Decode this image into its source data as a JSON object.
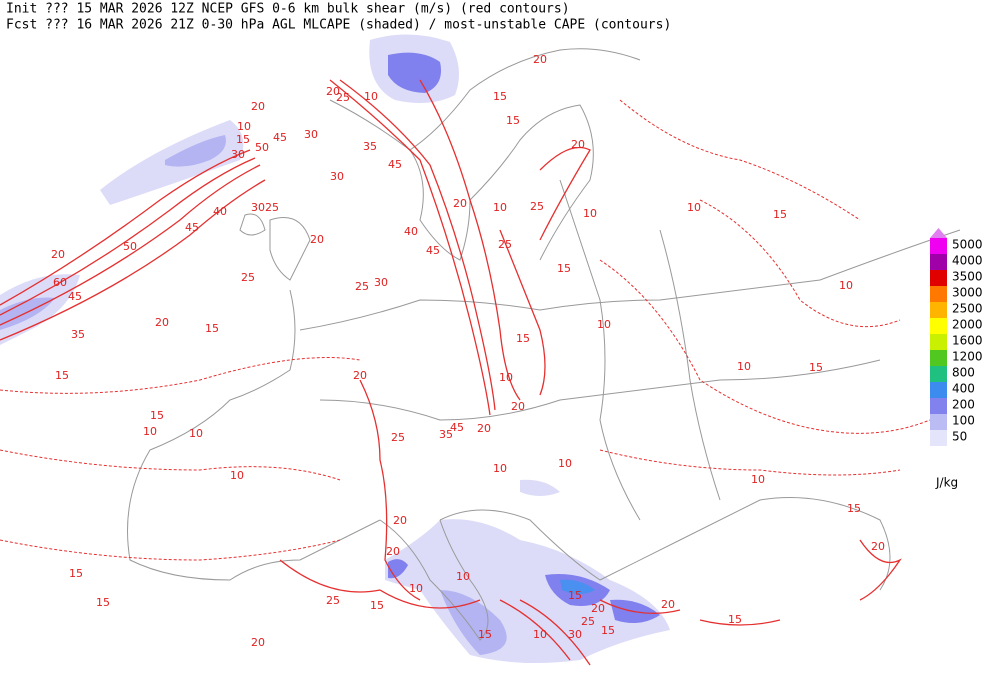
{
  "header": {
    "init": "Init  ??? 15 MAR 2026 12Z  NCEP GFS 0-6 km bulk shear (m/s) (red contours)",
    "fcst": "Fcst ??? 16 MAR 2026 21Z  0-30 hPa AGL MLCAPE (shaded) / most-unstable CAPE (contours)"
  },
  "legend": {
    "unit": "J/kg",
    "levels": [
      5000,
      4000,
      3500,
      3000,
      2500,
      2000,
      1600,
      1200,
      800,
      400,
      200,
      100,
      50
    ],
    "colors": [
      "#f000f0",
      "#a000a8",
      "#e00000",
      "#ff7800",
      "#ffb400",
      "#ffff00",
      "#c8f000",
      "#50c820",
      "#20c080",
      "#3c8cf0",
      "#8282ee",
      "#bcbcf4",
      "#e4e4fa"
    ]
  },
  "contour_labels": [
    60,
    45,
    35,
    50,
    20,
    45,
    40,
    30,
    25,
    20,
    10,
    15,
    45,
    50,
    30,
    35,
    45,
    30,
    25,
    10,
    20,
    30,
    20,
    25,
    25,
    30,
    20,
    15,
    15,
    15,
    10,
    10,
    45,
    40,
    20,
    15,
    10,
    25,
    20,
    15,
    10,
    25,
    15,
    15,
    10,
    20,
    10,
    15,
    10,
    10,
    15,
    10,
    45,
    20,
    35,
    25,
    20,
    10,
    15,
    15,
    20,
    20,
    10,
    10,
    15,
    25,
    15,
    20,
    20,
    15,
    20,
    15,
    10,
    10,
    10,
    15,
    10,
    30,
    25,
    15,
    20,
    20
  ]
}
